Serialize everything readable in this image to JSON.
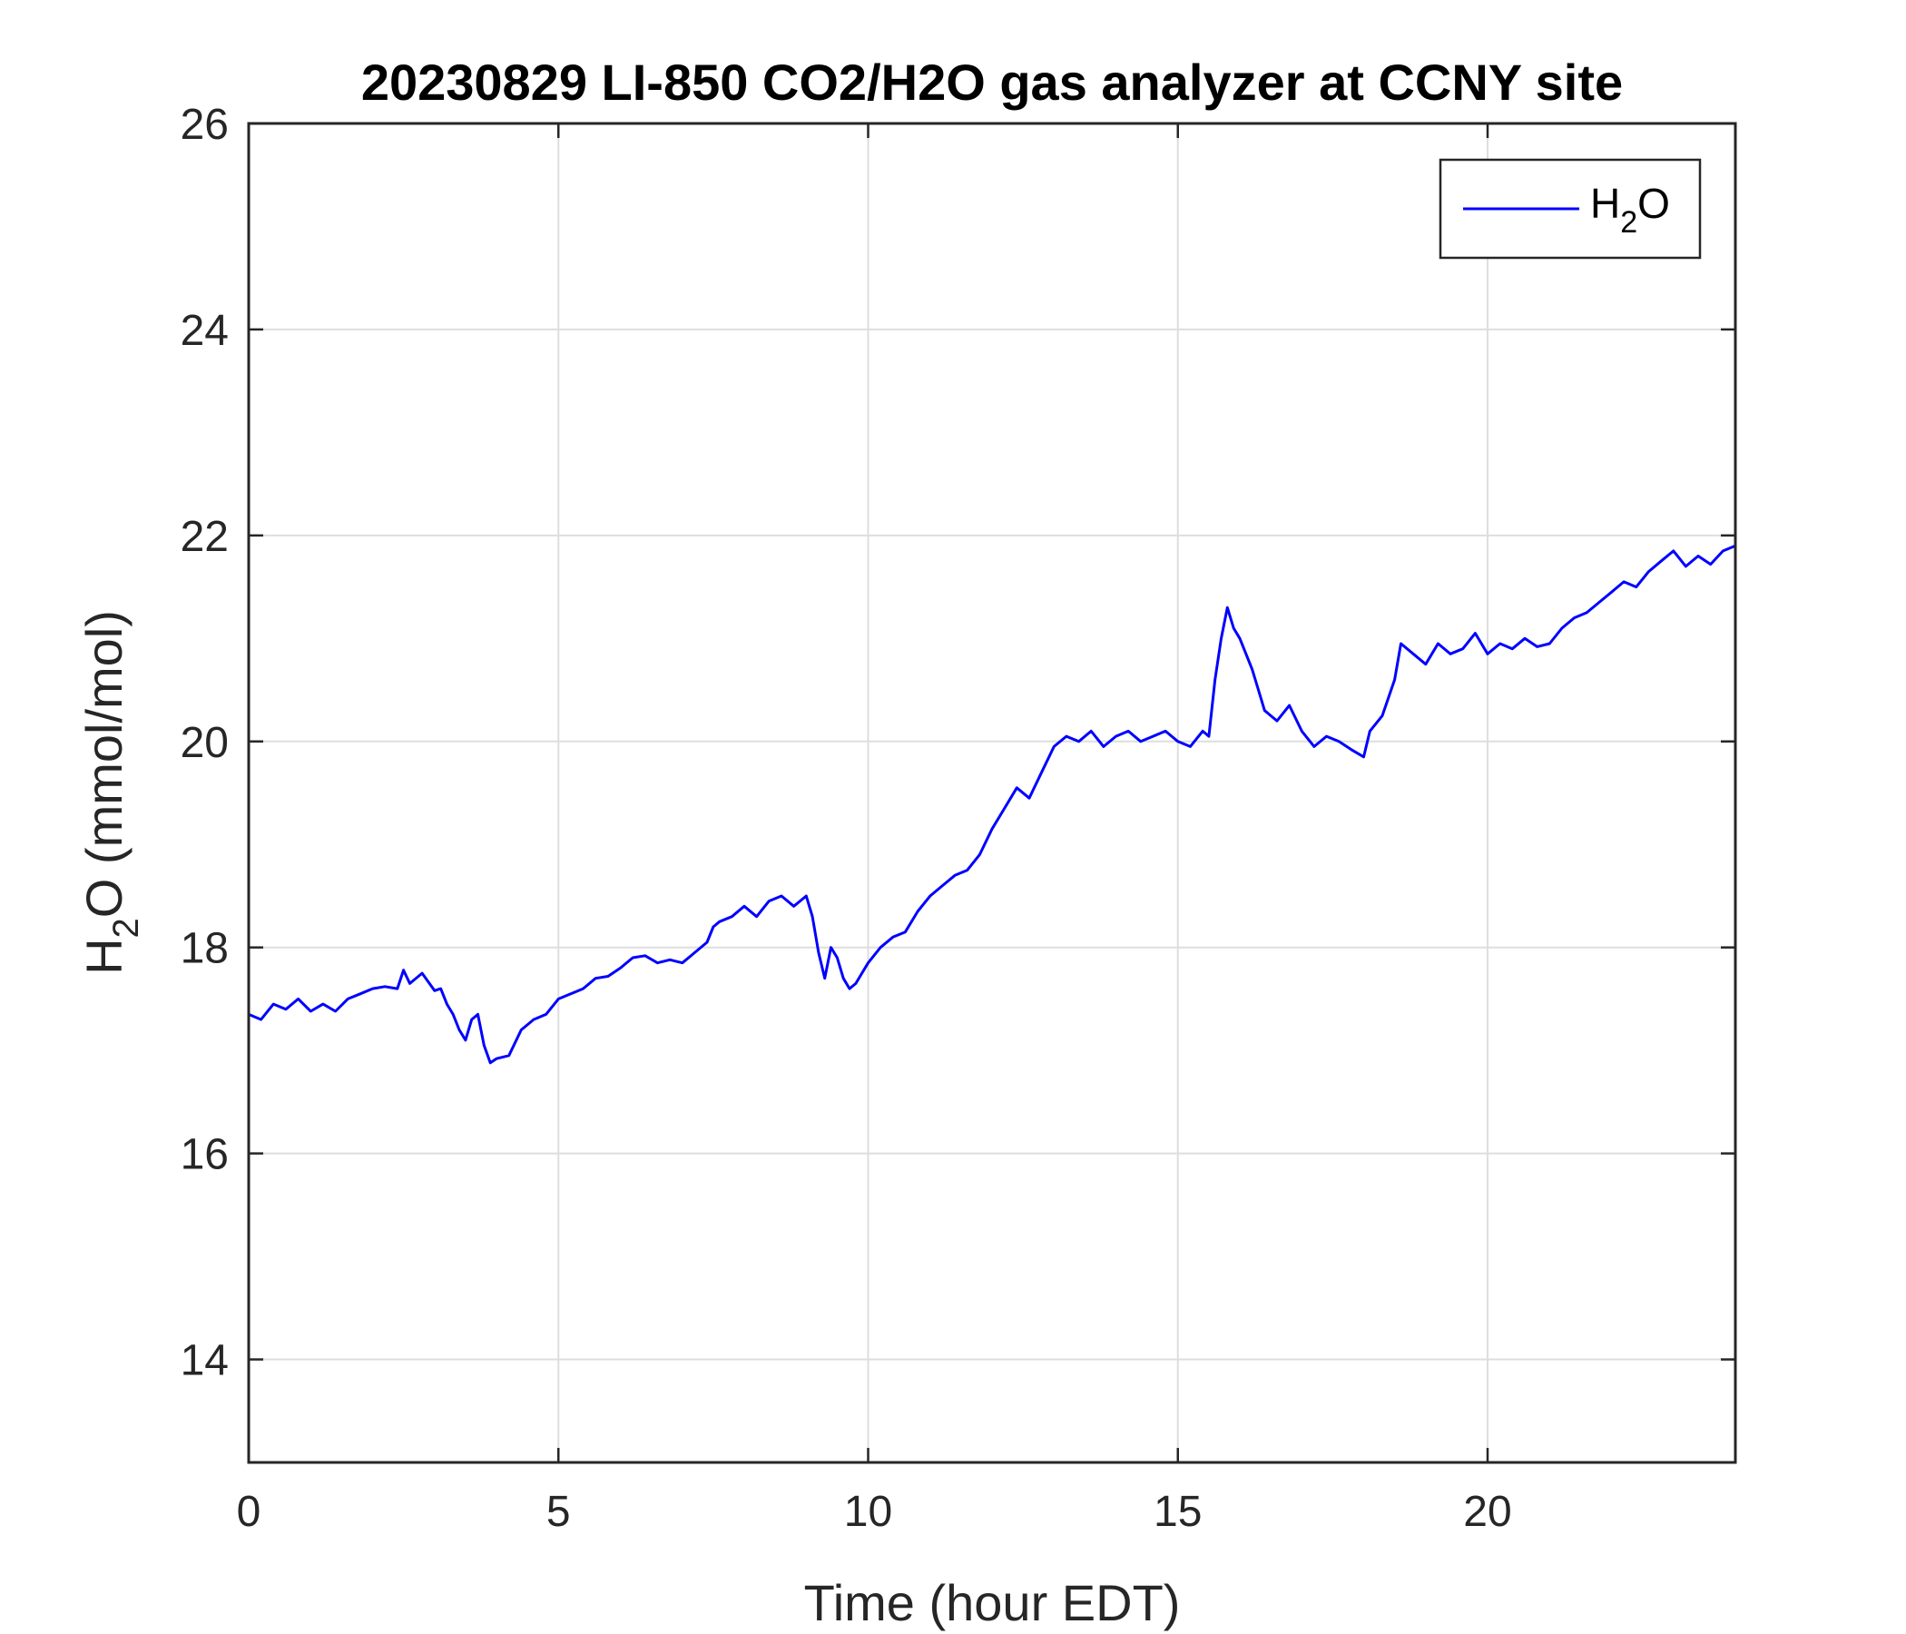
{
  "chart_data": {
    "type": "line",
    "title": "20230829 LI-850 CO2/H2O gas analyzer at CCNY site",
    "xlabel": "Time (hour EDT)",
    "ylabel": {
      "base": "H",
      "sub": "2",
      "rest": "O (mmol/mol)"
    },
    "xlim": [
      0,
      24
    ],
    "ylim": [
      13,
      26
    ],
    "xticks": [
      0,
      5,
      10,
      15,
      20
    ],
    "yticks": [
      14,
      16,
      18,
      20,
      22,
      24,
      26
    ],
    "grid": true,
    "legend": {
      "position": "top-right",
      "label_base": "H",
      "label_sub": "2",
      "label_rest": "O"
    },
    "series": [
      {
        "name": "H2O",
        "color": "#0000ff",
        "points": [
          [
            0.0,
            17.35
          ],
          [
            0.2,
            17.3
          ],
          [
            0.4,
            17.45
          ],
          [
            0.6,
            17.4
          ],
          [
            0.8,
            17.5
          ],
          [
            1.0,
            17.38
          ],
          [
            1.2,
            17.45
          ],
          [
            1.4,
            17.38
          ],
          [
            1.6,
            17.5
          ],
          [
            1.8,
            17.55
          ],
          [
            2.0,
            17.6
          ],
          [
            2.2,
            17.62
          ],
          [
            2.4,
            17.6
          ],
          [
            2.5,
            17.78
          ],
          [
            2.6,
            17.65
          ],
          [
            2.8,
            17.75
          ],
          [
            3.0,
            17.58
          ],
          [
            3.1,
            17.6
          ],
          [
            3.2,
            17.45
          ],
          [
            3.3,
            17.35
          ],
          [
            3.4,
            17.2
          ],
          [
            3.5,
            17.1
          ],
          [
            3.6,
            17.3
          ],
          [
            3.7,
            17.35
          ],
          [
            3.8,
            17.05
          ],
          [
            3.9,
            16.88
          ],
          [
            4.0,
            16.92
          ],
          [
            4.2,
            16.95
          ],
          [
            4.4,
            17.2
          ],
          [
            4.6,
            17.3
          ],
          [
            4.8,
            17.35
          ],
          [
            5.0,
            17.5
          ],
          [
            5.2,
            17.55
          ],
          [
            5.4,
            17.6
          ],
          [
            5.6,
            17.7
          ],
          [
            5.8,
            17.72
          ],
          [
            6.0,
            17.8
          ],
          [
            6.2,
            17.9
          ],
          [
            6.4,
            17.92
          ],
          [
            6.6,
            17.85
          ],
          [
            6.8,
            17.88
          ],
          [
            7.0,
            17.85
          ],
          [
            7.2,
            17.95
          ],
          [
            7.4,
            18.05
          ],
          [
            7.5,
            18.2
          ],
          [
            7.6,
            18.25
          ],
          [
            7.8,
            18.3
          ],
          [
            8.0,
            18.4
          ],
          [
            8.2,
            18.3
          ],
          [
            8.4,
            18.45
          ],
          [
            8.6,
            18.5
          ],
          [
            8.8,
            18.4
          ],
          [
            9.0,
            18.5
          ],
          [
            9.1,
            18.3
          ],
          [
            9.2,
            17.95
          ],
          [
            9.3,
            17.7
          ],
          [
            9.4,
            18.0
          ],
          [
            9.5,
            17.9
          ],
          [
            9.6,
            17.7
          ],
          [
            9.7,
            17.6
          ],
          [
            9.8,
            17.65
          ],
          [
            10.0,
            17.85
          ],
          [
            10.2,
            18.0
          ],
          [
            10.4,
            18.1
          ],
          [
            10.6,
            18.15
          ],
          [
            10.8,
            18.35
          ],
          [
            11.0,
            18.5
          ],
          [
            11.2,
            18.6
          ],
          [
            11.4,
            18.7
          ],
          [
            11.6,
            18.75
          ],
          [
            11.8,
            18.9
          ],
          [
            12.0,
            19.15
          ],
          [
            12.2,
            19.35
          ],
          [
            12.4,
            19.55
          ],
          [
            12.6,
            19.45
          ],
          [
            12.8,
            19.7
          ],
          [
            13.0,
            19.95
          ],
          [
            13.2,
            20.05
          ],
          [
            13.4,
            20.0
          ],
          [
            13.6,
            20.1
          ],
          [
            13.8,
            19.95
          ],
          [
            14.0,
            20.05
          ],
          [
            14.2,
            20.1
          ],
          [
            14.4,
            20.0
          ],
          [
            14.6,
            20.05
          ],
          [
            14.8,
            20.1
          ],
          [
            15.0,
            20.0
          ],
          [
            15.2,
            19.95
          ],
          [
            15.4,
            20.1
          ],
          [
            15.5,
            20.05
          ],
          [
            15.6,
            20.6
          ],
          [
            15.7,
            21.0
          ],
          [
            15.8,
            21.3
          ],
          [
            15.9,
            21.1
          ],
          [
            16.0,
            21.0
          ],
          [
            16.1,
            20.85
          ],
          [
            16.2,
            20.7
          ],
          [
            16.3,
            20.5
          ],
          [
            16.4,
            20.3
          ],
          [
            16.6,
            20.2
          ],
          [
            16.8,
            20.35
          ],
          [
            17.0,
            20.1
          ],
          [
            17.2,
            19.95
          ],
          [
            17.4,
            20.05
          ],
          [
            17.6,
            20.0
          ],
          [
            17.8,
            19.92
          ],
          [
            18.0,
            19.85
          ],
          [
            18.1,
            20.1
          ],
          [
            18.3,
            20.25
          ],
          [
            18.5,
            20.6
          ],
          [
            18.6,
            20.95
          ],
          [
            18.8,
            20.85
          ],
          [
            19.0,
            20.75
          ],
          [
            19.2,
            20.95
          ],
          [
            19.4,
            20.85
          ],
          [
            19.6,
            20.9
          ],
          [
            19.8,
            21.05
          ],
          [
            20.0,
            20.85
          ],
          [
            20.2,
            20.95
          ],
          [
            20.4,
            20.9
          ],
          [
            20.6,
            21.0
          ],
          [
            20.8,
            20.92
          ],
          [
            21.0,
            20.95
          ],
          [
            21.2,
            21.1
          ],
          [
            21.4,
            21.2
          ],
          [
            21.6,
            21.25
          ],
          [
            21.8,
            21.35
          ],
          [
            22.0,
            21.45
          ],
          [
            22.2,
            21.55
          ],
          [
            22.4,
            21.5
          ],
          [
            22.6,
            21.65
          ],
          [
            22.8,
            21.75
          ],
          [
            23.0,
            21.85
          ],
          [
            23.2,
            21.7
          ],
          [
            23.4,
            21.8
          ],
          [
            23.6,
            21.72
          ],
          [
            23.8,
            21.85
          ],
          [
            24.0,
            21.9
          ]
        ]
      }
    ]
  }
}
